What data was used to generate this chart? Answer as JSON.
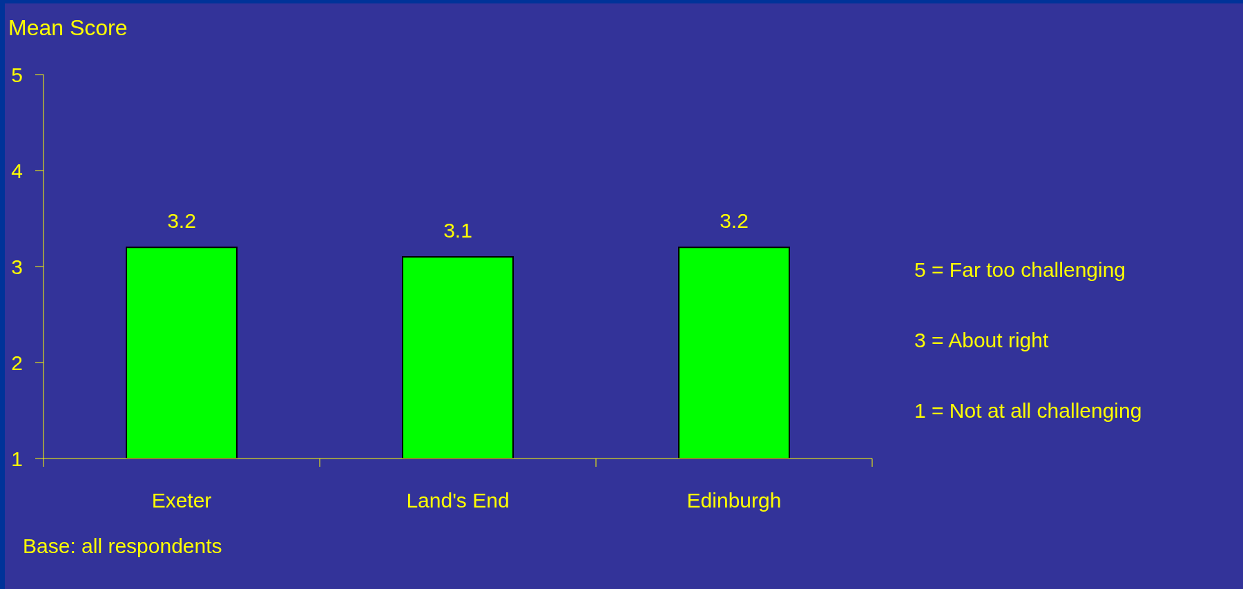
{
  "chart_data": {
    "type": "bar",
    "ylabel": "Mean Score",
    "categories": [
      "Exeter",
      "Land's End",
      "Edinburgh"
    ],
    "values": [
      3.2,
      3.1,
      3.2
    ],
    "color": "#00ff00",
    "ylim": [
      1,
      5
    ],
    "yticks": [
      1,
      2,
      3,
      4,
      5
    ],
    "data_labels": true,
    "annotations": [
      "5 = Far too challenging",
      "3 = About right",
      "1 = Not at all challenging",
      "Base: all respondents"
    ]
  }
}
